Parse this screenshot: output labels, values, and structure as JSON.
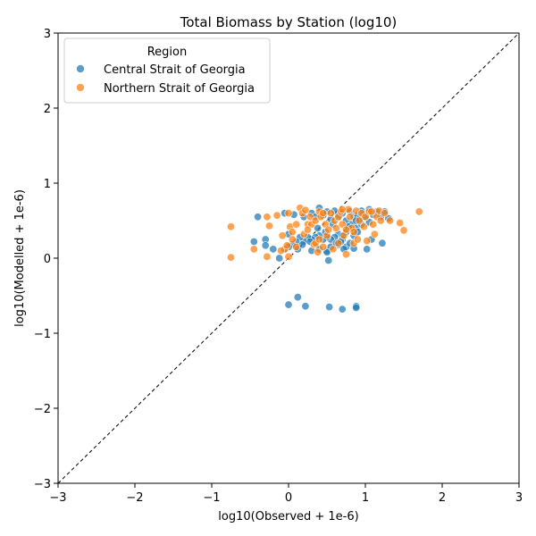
{
  "chart_data": {
    "type": "scatter",
    "title": "Total Biomass by Station (log10)",
    "xlabel": "log10(Observed + 1e-6)",
    "ylabel": "log10(Modelled + 1e-6)",
    "xlim": [
      -3,
      3
    ],
    "ylim": [
      -3,
      3
    ],
    "xticks": [
      -3,
      -2,
      -1,
      0,
      1,
      2,
      3
    ],
    "yticks": [
      -3,
      -2,
      -1,
      0,
      1,
      2,
      3
    ],
    "xtick_labels": [
      "−3",
      "−2",
      "−1",
      "0",
      "1",
      "2",
      "3"
    ],
    "ytick_labels": [
      "−3",
      "−2",
      "−1",
      "0",
      "1",
      "2",
      "3"
    ],
    "grid": false,
    "reference_line": "y = x (dashed)",
    "legend": {
      "title": "Region",
      "placement": "top-left"
    },
    "series": [
      {
        "name": "Central Strait of Georgia",
        "color": "#1f77b4",
        "points": [
          [
            -0.4,
            0.55
          ],
          [
            -0.05,
            0.6
          ],
          [
            0.07,
            0.58
          ],
          [
            0.2,
            0.55
          ],
          [
            0.3,
            0.6
          ],
          [
            0.35,
            0.55
          ],
          [
            0.4,
            0.67
          ],
          [
            0.45,
            0.57
          ],
          [
            0.5,
            0.62
          ],
          [
            0.55,
            0.52
          ],
          [
            0.6,
            0.63
          ],
          [
            0.65,
            0.55
          ],
          [
            0.7,
            0.6
          ],
          [
            0.75,
            0.5
          ],
          [
            0.8,
            0.62
          ],
          [
            0.85,
            0.55
          ],
          [
            0.9,
            0.57
          ],
          [
            0.95,
            0.63
          ],
          [
            1.0,
            0.55
          ],
          [
            1.05,
            0.65
          ],
          [
            1.1,
            0.58
          ],
          [
            1.15,
            0.62
          ],
          [
            1.2,
            0.55
          ],
          [
            1.25,
            0.62
          ],
          [
            1.3,
            0.53
          ],
          [
            0.82,
            0.45
          ],
          [
            0.88,
            0.4
          ],
          [
            0.75,
            0.35
          ],
          [
            0.65,
            0.32
          ],
          [
            0.7,
            0.3
          ],
          [
            0.85,
            0.3
          ],
          [
            0.9,
            0.35
          ],
          [
            0.6,
            0.28
          ],
          [
            0.55,
            0.25
          ],
          [
            0.5,
            0.28
          ],
          [
            0.45,
            0.25
          ],
          [
            0.4,
            0.3
          ],
          [
            0.35,
            0.28
          ],
          [
            0.3,
            0.25
          ],
          [
            0.25,
            0.28
          ],
          [
            0.2,
            0.22
          ],
          [
            0.15,
            0.28
          ],
          [
            0.1,
            0.22
          ],
          [
            0.05,
            0.18
          ],
          [
            0.0,
            0.15
          ],
          [
            -0.05,
            0.12
          ],
          [
            0.12,
            0.12
          ],
          [
            0.3,
            0.1
          ],
          [
            0.4,
            0.12
          ],
          [
            0.5,
            0.1
          ],
          [
            0.55,
            0.15
          ],
          [
            0.65,
            0.18
          ],
          [
            0.75,
            0.15
          ],
          [
            0.8,
            0.2
          ],
          [
            0.85,
            0.13
          ],
          [
            0.5,
            0.08
          ],
          [
            0.52,
            -0.03
          ],
          [
            0.62,
            0.2
          ],
          [
            0.7,
            0.25
          ],
          [
            0.72,
            0.12
          ],
          [
            0.95,
            0.45
          ],
          [
            1.05,
            0.48
          ],
          [
            0.92,
            0.52
          ],
          [
            1.02,
            0.12
          ],
          [
            1.22,
            0.2
          ],
          [
            -0.45,
            0.22
          ],
          [
            -0.3,
            0.25
          ],
          [
            -0.3,
            0.17
          ],
          [
            -0.2,
            0.12
          ],
          [
            -0.12,
            0.0
          ],
          [
            0.0,
            0.32
          ],
          [
            0.18,
            0.18
          ],
          [
            0.28,
            0.22
          ],
          [
            0.38,
            0.4
          ],
          [
            0.48,
            0.35
          ],
          [
            0.58,
            0.45
          ],
          [
            0.78,
            0.42
          ],
          [
            0.88,
            0.5
          ],
          [
            1.08,
            0.25
          ],
          [
            0.68,
            0.22
          ],
          [
            0.0,
            -0.62
          ],
          [
            0.12,
            -0.52
          ],
          [
            0.22,
            -0.64
          ],
          [
            0.53,
            -0.65
          ],
          [
            0.7,
            -0.68
          ],
          [
            0.88,
            -0.64
          ],
          [
            0.88,
            -0.66
          ]
        ]
      },
      {
        "name": "Northern Strait of Georgia",
        "color": "#ff7f0e",
        "points": [
          [
            -0.75,
            0.42
          ],
          [
            -0.75,
            0.01
          ],
          [
            -0.45,
            0.12
          ],
          [
            -0.28,
            0.55
          ],
          [
            -0.25,
            0.43
          ],
          [
            -0.28,
            0.02
          ],
          [
            -0.15,
            0.57
          ],
          [
            -0.08,
            0.3
          ],
          [
            -0.05,
            0.12
          ],
          [
            -0.02,
            0.17
          ],
          [
            0.0,
            0.02
          ],
          [
            0.02,
            0.42
          ],
          [
            0.0,
            0.6
          ],
          [
            0.05,
            0.35
          ],
          [
            0.1,
            0.15
          ],
          [
            0.15,
            0.67
          ],
          [
            0.18,
            0.6
          ],
          [
            0.22,
            0.64
          ],
          [
            0.25,
            0.45
          ],
          [
            0.28,
            0.55
          ],
          [
            0.3,
            0.45
          ],
          [
            0.33,
            0.18
          ],
          [
            0.35,
            0.5
          ],
          [
            0.38,
            0.08
          ],
          [
            0.4,
            0.62
          ],
          [
            0.42,
            0.55
          ],
          [
            0.45,
            0.6
          ],
          [
            0.48,
            0.45
          ],
          [
            0.5,
            0.3
          ],
          [
            0.55,
            0.6
          ],
          [
            0.6,
            0.5
          ],
          [
            0.62,
            0.4
          ],
          [
            0.65,
            0.55
          ],
          [
            0.68,
            0.62
          ],
          [
            0.7,
            0.45
          ],
          [
            0.72,
            0.3
          ],
          [
            0.75,
            0.05
          ],
          [
            0.78,
            0.65
          ],
          [
            0.8,
            0.55
          ],
          [
            0.82,
            0.4
          ],
          [
            0.85,
            0.2
          ],
          [
            0.88,
            0.63
          ],
          [
            0.9,
            0.25
          ],
          [
            0.92,
            0.5
          ],
          [
            0.95,
            0.6
          ],
          [
            0.98,
            0.42
          ],
          [
            1.0,
            0.55
          ],
          [
            1.02,
            0.23
          ],
          [
            1.05,
            0.62
          ],
          [
            1.1,
            0.45
          ],
          [
            1.12,
            0.32
          ],
          [
            1.15,
            0.55
          ],
          [
            1.18,
            0.63
          ],
          [
            1.2,
            0.5
          ],
          [
            1.25,
            0.6
          ],
          [
            1.32,
            0.5
          ],
          [
            1.45,
            0.47
          ],
          [
            1.5,
            0.37
          ],
          [
            1.7,
            0.62
          ],
          [
            0.2,
            0.32
          ],
          [
            0.35,
            0.2
          ],
          [
            0.45,
            0.15
          ],
          [
            0.58,
            0.12
          ],
          [
            0.65,
            0.2
          ],
          [
            0.1,
            0.45
          ],
          [
            -0.1,
            0.1
          ],
          [
            0.05,
            0.25
          ],
          [
            0.25,
            0.38
          ],
          [
            0.52,
            0.38
          ],
          [
            0.75,
            0.38
          ],
          [
            0.85,
            0.35
          ],
          [
            1.08,
            0.62
          ],
          [
            0.7,
            0.65
          ],
          [
            0.4,
            0.25
          ]
        ]
      }
    ]
  }
}
